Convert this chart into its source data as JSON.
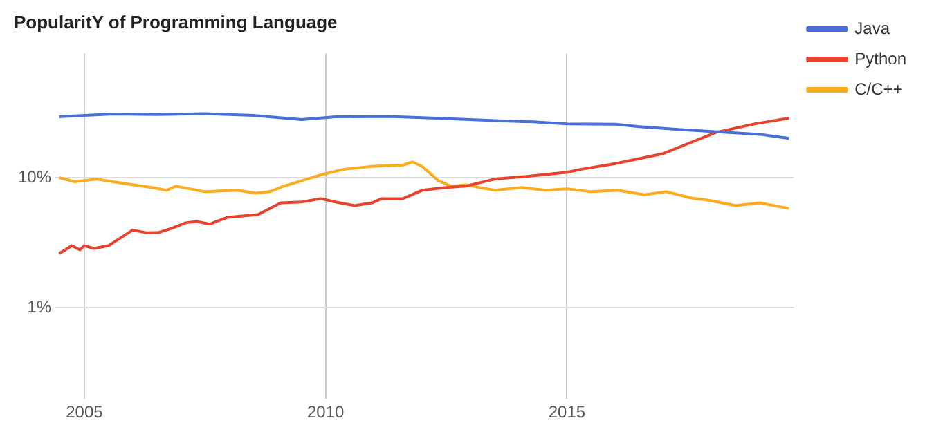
{
  "chart_data": {
    "type": "line",
    "title": "PopularitY of Programming Language",
    "log": "y",
    "grid": true,
    "legend": "top right",
    "marker": "none",
    "line_style": "solid",
    "xlim": [
      2004.4,
      2019.7
    ],
    "xticks": [
      2005,
      2010,
      2015
    ],
    "ylim": [
      0.2,
      90
    ],
    "yticks": [
      {
        "value": 1,
        "label": "1%"
      },
      {
        "value": 10,
        "label": "10%"
      }
    ],
    "series": [
      {
        "name": "Java",
        "color": "#4a6fd8",
        "x": [
          2004.48,
          2005.0,
          2005.6,
          2006.5,
          2007.5,
          2008.5,
          2009.5,
          2010.2,
          2011.3,
          2012.3,
          2013.5,
          2014.3,
          2015.0,
          2016.0,
          2016.5,
          2017.4,
          2018.3,
          2019.0,
          2019.6
        ],
        "values": [
          29.3,
          30.0,
          30.8,
          30.5,
          31.0,
          30.0,
          27.9,
          29.3,
          29.5,
          28.6,
          27.4,
          26.8,
          25.9,
          25.7,
          24.6,
          23.3,
          22.3,
          21.5,
          20.0
        ]
      },
      {
        "name": "Python",
        "color": "#e8412c",
        "x": [
          2004.48,
          2004.74,
          2004.91,
          2005.0,
          2005.2,
          2005.5,
          2006.0,
          2006.3,
          2006.55,
          2006.8,
          2007.1,
          2007.33,
          2007.6,
          2007.97,
          2008.6,
          2009.07,
          2009.5,
          2009.9,
          2010.2,
          2010.6,
          2010.96,
          2011.16,
          2011.6,
          2012.0,
          2012.5,
          2012.9,
          2013.5,
          2014.27,
          2015.0,
          2015.3,
          2016.0,
          2017.0,
          2017.5,
          2018.1,
          2018.9,
          2019.6
        ],
        "values": [
          2.61,
          3.0,
          2.79,
          3.0,
          2.86,
          3.0,
          3.96,
          3.77,
          3.8,
          4.07,
          4.5,
          4.6,
          4.4,
          4.96,
          5.2,
          6.4,
          6.5,
          6.9,
          6.5,
          6.1,
          6.4,
          6.9,
          6.9,
          8.0,
          8.4,
          8.6,
          9.75,
          10.3,
          11.0,
          11.6,
          12.8,
          15.3,
          18.2,
          22.3,
          25.9,
          28.6
        ]
      },
      {
        "name": "C/C++",
        "color": "#fbab1c",
        "x": [
          2004.48,
          2004.8,
          2005.26,
          2005.8,
          2006.4,
          2006.7,
          2006.9,
          2007.5,
          2008.17,
          2008.55,
          2008.84,
          2009.13,
          2009.9,
          2010.38,
          2010.96,
          2011.6,
          2011.8,
          2012.0,
          2012.33,
          2012.6,
          2012.9,
          2013.5,
          2014.07,
          2014.56,
          2015.0,
          2015.5,
          2016.05,
          2016.6,
          2017.06,
          2017.56,
          2017.94,
          2018.5,
          2019.0,
          2019.6
        ],
        "values": [
          10.0,
          9.3,
          9.75,
          9.05,
          8.4,
          8.0,
          8.6,
          7.8,
          8.0,
          7.6,
          7.8,
          8.6,
          10.5,
          11.6,
          12.2,
          12.5,
          13.2,
          12.2,
          9.5,
          8.6,
          8.8,
          8.0,
          8.4,
          8.0,
          8.2,
          7.8,
          8.0,
          7.4,
          7.8,
          7.0,
          6.7,
          6.1,
          6.4,
          5.8
        ]
      }
    ]
  }
}
